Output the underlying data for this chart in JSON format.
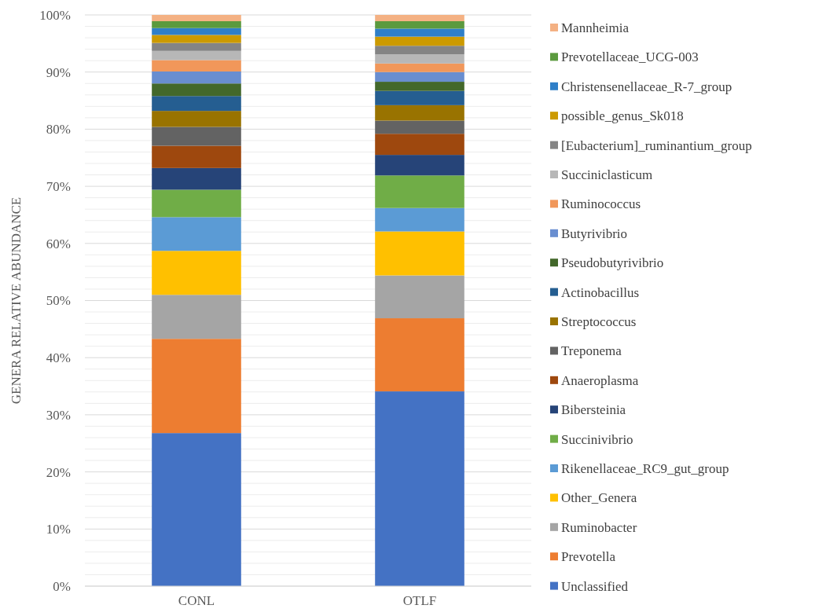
{
  "chart_data": {
    "type": "bar",
    "stacked": true,
    "ylabel": "GENERA RELATIVE ABUNDANCE",
    "categories": [
      "CONL",
      "OTLF"
    ],
    "ylim": [
      0,
      100
    ],
    "yticks": [
      {
        "value": 0,
        "label": "0%"
      },
      {
        "value": 2,
        "label": null
      },
      {
        "value": 4,
        "label": null
      },
      {
        "value": 6,
        "label": null
      },
      {
        "value": 8,
        "label": null
      },
      {
        "value": 10,
        "label": "10%"
      },
      {
        "value": 12,
        "label": null
      },
      {
        "value": 14,
        "label": null
      },
      {
        "value": 16,
        "label": null
      },
      {
        "value": 18,
        "label": null
      },
      {
        "value": 20,
        "label": "20%"
      },
      {
        "value": 22,
        "label": null
      },
      {
        "value": 24,
        "label": null
      },
      {
        "value": 26,
        "label": null
      },
      {
        "value": 28,
        "label": null
      },
      {
        "value": 30,
        "label": "30%"
      },
      {
        "value": 32,
        "label": null
      },
      {
        "value": 34,
        "label": null
      },
      {
        "value": 36,
        "label": null
      },
      {
        "value": 38,
        "label": null
      },
      {
        "value": 40,
        "label": "40%"
      },
      {
        "value": 42,
        "label": null
      },
      {
        "value": 44,
        "label": null
      },
      {
        "value": 46,
        "label": null
      },
      {
        "value": 48,
        "label": null
      },
      {
        "value": 50,
        "label": "50%"
      },
      {
        "value": 52,
        "label": null
      },
      {
        "value": 54,
        "label": null
      },
      {
        "value": 56,
        "label": null
      },
      {
        "value": 58,
        "label": null
      },
      {
        "value": 60,
        "label": "60%"
      },
      {
        "value": 62,
        "label": null
      },
      {
        "value": 64,
        "label": null
      },
      {
        "value": 66,
        "label": null
      },
      {
        "value": 68,
        "label": null
      },
      {
        "value": 70,
        "label": "70%"
      },
      {
        "value": 72,
        "label": null
      },
      {
        "value": 74,
        "label": null
      },
      {
        "value": 76,
        "label": null
      },
      {
        "value": 78,
        "label": null
      },
      {
        "value": 80,
        "label": "80%"
      },
      {
        "value": 82,
        "label": null
      },
      {
        "value": 84,
        "label": null
      },
      {
        "value": 86,
        "label": null
      },
      {
        "value": 88,
        "label": null
      },
      {
        "value": 90,
        "label": "90%"
      },
      {
        "value": 92,
        "label": null
      },
      {
        "value": 94,
        "label": null
      },
      {
        "value": 96,
        "label": null
      },
      {
        "value": 98,
        "label": null
      },
      {
        "value": 100,
        "label": "100%"
      }
    ],
    "grid": "y",
    "legend": "right",
    "series": [
      {
        "name": "Unclassified",
        "color": "#4472c4",
        "values": [
          26.8,
          34.1
        ]
      },
      {
        "name": "Prevotella",
        "color": "#ed7d31",
        "values": [
          16.5,
          12.8
        ]
      },
      {
        "name": "Ruminobacter",
        "color": "#a5a5a5",
        "values": [
          7.7,
          7.5
        ]
      },
      {
        "name": "Other_Genera",
        "color": "#ffc000",
        "values": [
          7.7,
          7.7
        ]
      },
      {
        "name": "Rikenellaceae_RC9_gut_group",
        "color": "#5b9bd5",
        "values": [
          5.9,
          4.1
        ]
      },
      {
        "name": "Succinivibrio",
        "color": "#70ad47",
        "values": [
          4.8,
          5.7
        ]
      },
      {
        "name": "Bibersteinia",
        "color": "#264478",
        "values": [
          3.8,
          3.6
        ]
      },
      {
        "name": "Anaeroplasma",
        "color": "#9e480e",
        "values": [
          3.9,
          3.7
        ]
      },
      {
        "name": "Treponema",
        "color": "#636363",
        "values": [
          3.3,
          2.3
        ]
      },
      {
        "name": "Streptococcus",
        "color": "#997300",
        "values": [
          2.8,
          2.7
        ]
      },
      {
        "name": "Actinobacillus",
        "color": "#255e91",
        "values": [
          2.6,
          2.5
        ]
      },
      {
        "name": "Pseudobutyrivibrio",
        "color": "#43682b",
        "values": [
          2.2,
          1.6
        ]
      },
      {
        "name": "Butyrivibrio",
        "color": "#698ed0",
        "values": [
          2.1,
          1.7
        ]
      },
      {
        "name": "Ruminococcus",
        "color": "#f1975a",
        "values": [
          2.0,
          1.5
        ]
      },
      {
        "name": "Succiniclasticum",
        "color": "#b7b7b7",
        "values": [
          1.6,
          1.6
        ]
      },
      {
        "name": "[Eubacterium]_ruminantium_group",
        "color": "#848484",
        "values": [
          1.4,
          1.5
        ]
      },
      {
        "name": "possible_genus_Sk018",
        "color": "#cc9a00",
        "values": [
          1.4,
          1.6
        ]
      },
      {
        "name": "Christensenellaceae_R-7_group",
        "color": "#2f7fc8",
        "values": [
          1.2,
          1.4
        ]
      },
      {
        "name": "Prevotellaceae_UCG-003",
        "color": "#5b9a3e",
        "values": [
          1.2,
          1.3
        ]
      },
      {
        "name": "Mannheimia",
        "color": "#f4b183",
        "values": [
          1.1,
          1.1
        ]
      }
    ]
  }
}
